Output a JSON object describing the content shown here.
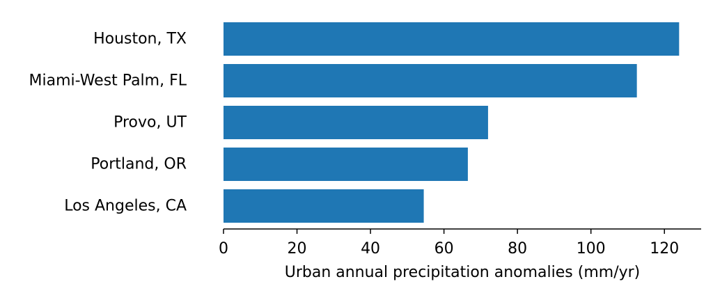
{
  "chart_data": {
    "type": "bar",
    "orientation": "horizontal",
    "title": "",
    "xlabel": "Urban annual precipitation anomalies (mm/yr)",
    "ylabel": "",
    "categories": [
      "Houston, TX",
      "Miami-West Palm, FL",
      "Provo, UT",
      "Portland, OR",
      "Los Angeles, CA"
    ],
    "values": [
      124,
      112.5,
      72,
      66.5,
      54.5
    ],
    "xlim": [
      0,
      130
    ],
    "xticks": [
      0,
      20,
      40,
      60,
      80,
      100,
      120
    ],
    "xtick_labels": [
      "0",
      "20",
      "40",
      "60",
      "80",
      "100",
      "120"
    ],
    "grid": false,
    "bar_color": "#1f77b4"
  }
}
